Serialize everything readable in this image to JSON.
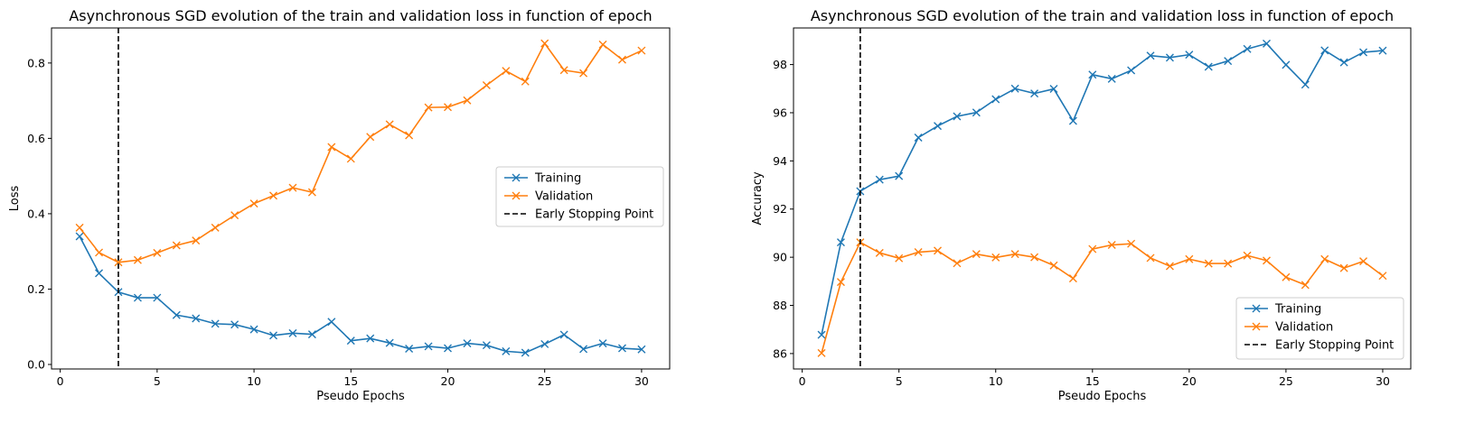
{
  "chart_data": [
    {
      "type": "line",
      "title": "Asynchronous SGD evolution of the train and validation loss in function of epoch",
      "xlabel": "Pseudo Epochs",
      "ylabel": "Loss",
      "xlim": [
        -0.45,
        31.45
      ],
      "ylim": [
        -0.012,
        0.893
      ],
      "xticks": [
        0,
        5,
        10,
        15,
        20,
        25,
        30
      ],
      "xtick_labels": [
        "0",
        "5",
        "10",
        "15",
        "20",
        "25",
        "30"
      ],
      "yticks": [
        0.0,
        0.2,
        0.4,
        0.6,
        0.8
      ],
      "ytick_labels": [
        "0.0",
        "0.2",
        "0.4",
        "0.6",
        "0.8"
      ],
      "grid": false,
      "legend_position": "center-right",
      "x": [
        1,
        2,
        3,
        4,
        5,
        6,
        7,
        8,
        9,
        10,
        11,
        12,
        13,
        14,
        15,
        16,
        17,
        18,
        19,
        20,
        21,
        22,
        23,
        24,
        25,
        26,
        27,
        28,
        29,
        30
      ],
      "series": [
        {
          "name": "Training",
          "color": "#1f77b4",
          "marker": "x",
          "values": [
            0.34,
            0.242,
            0.192,
            0.177,
            0.177,
            0.131,
            0.122,
            0.108,
            0.106,
            0.093,
            0.077,
            0.083,
            0.08,
            0.113,
            0.063,
            0.069,
            0.057,
            0.042,
            0.048,
            0.043,
            0.056,
            0.051,
            0.035,
            0.031,
            0.054,
            0.079,
            0.041,
            0.056,
            0.043,
            0.04
          ]
        },
        {
          "name": "Validation",
          "color": "#ff7f0e",
          "marker": "x",
          "values": [
            0.363,
            0.297,
            0.271,
            0.277,
            0.296,
            0.316,
            0.329,
            0.363,
            0.396,
            0.427,
            0.448,
            0.469,
            0.457,
            0.577,
            0.546,
            0.604,
            0.637,
            0.608,
            0.682,
            0.683,
            0.701,
            0.741,
            0.779,
            0.751,
            0.852,
            0.781,
            0.773,
            0.849,
            0.809,
            0.833
          ]
        }
      ],
      "vline": {
        "name": "Early Stopping Point",
        "x": 3,
        "color": "#000000",
        "style": "dashed"
      }
    },
    {
      "type": "line",
      "title": "Asynchronous SGD evolution of the train and validation loss in function of epoch",
      "xlabel": "Pseudo Epochs",
      "ylabel": "Accuracy",
      "xlim": [
        -0.45,
        31.45
      ],
      "ylim": [
        85.36,
        99.52
      ],
      "xticks": [
        0,
        5,
        10,
        15,
        20,
        25,
        30
      ],
      "xtick_labels": [
        "0",
        "5",
        "10",
        "15",
        "20",
        "25",
        "30"
      ],
      "yticks": [
        86,
        88,
        90,
        92,
        94,
        96,
        98
      ],
      "ytick_labels": [
        "86",
        "88",
        "90",
        "92",
        "94",
        "96",
        "98"
      ],
      "grid": false,
      "legend_position": "lower-right",
      "x": [
        1,
        2,
        3,
        4,
        5,
        6,
        7,
        8,
        9,
        10,
        11,
        12,
        13,
        14,
        15,
        16,
        17,
        18,
        19,
        20,
        21,
        22,
        23,
        24,
        25,
        26,
        27,
        28,
        29,
        30
      ],
      "series": [
        {
          "name": "Training",
          "color": "#1f77b4",
          "marker": "x",
          "values": [
            86.78,
            90.62,
            92.74,
            93.22,
            93.37,
            94.97,
            95.45,
            95.85,
            96.01,
            96.56,
            97.0,
            96.8,
            96.99,
            95.66,
            97.58,
            97.41,
            97.76,
            98.37,
            98.29,
            98.41,
            97.91,
            98.15,
            98.65,
            98.87,
            97.99,
            97.17,
            98.59,
            98.09,
            98.51,
            98.58
          ]
        },
        {
          "name": "Validation",
          "color": "#ff7f0e",
          "marker": "x",
          "values": [
            86.02,
            88.97,
            90.62,
            90.18,
            89.96,
            90.21,
            90.27,
            89.75,
            90.13,
            89.99,
            90.13,
            90.0,
            89.66,
            89.12,
            90.34,
            90.51,
            90.56,
            89.97,
            89.63,
            89.92,
            89.74,
            89.74,
            90.07,
            89.86,
            89.17,
            88.85,
            89.92,
            89.55,
            89.83,
            89.23
          ]
        }
      ],
      "vline": {
        "name": "Early Stopping Point",
        "x": 3,
        "color": "#000000",
        "style": "dashed"
      }
    }
  ]
}
